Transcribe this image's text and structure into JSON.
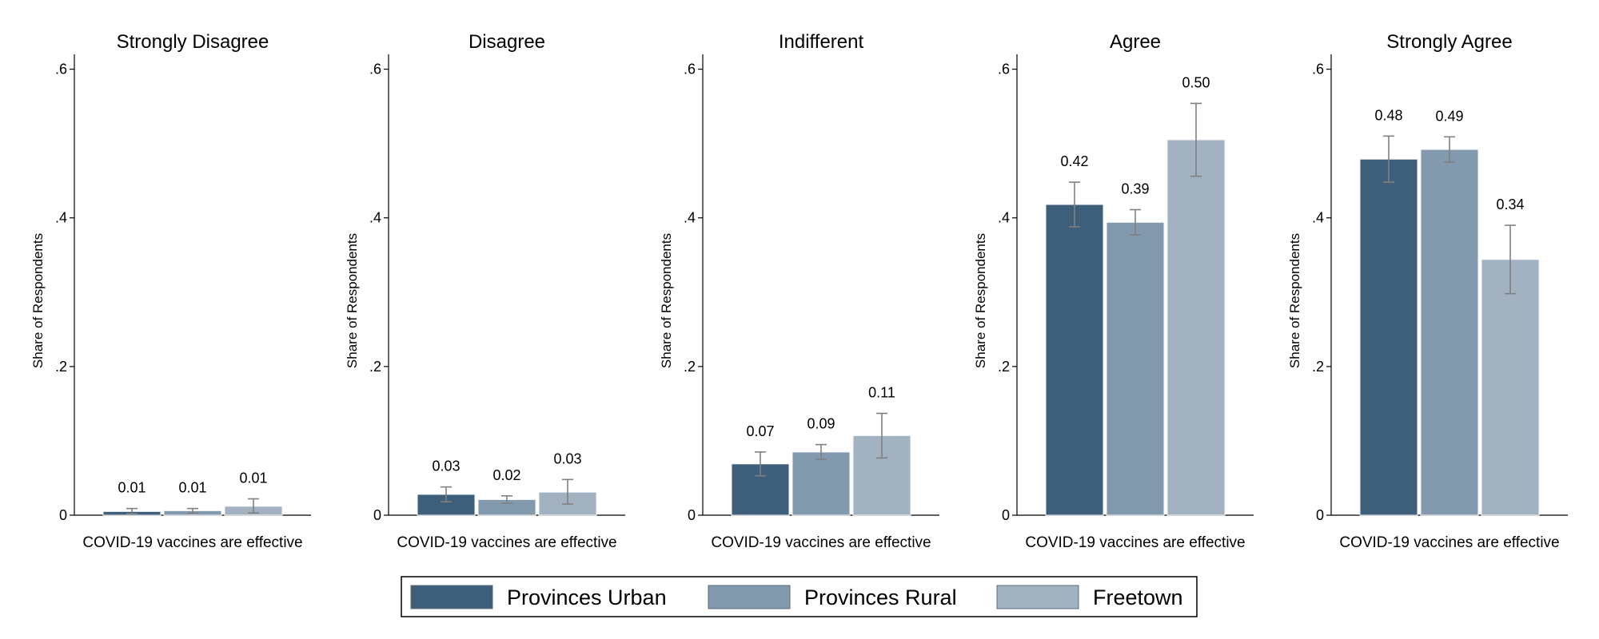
{
  "chart_data": {
    "type": "bar",
    "panels": [
      {
        "title": "Strongly Disagree",
        "values": [
          0.005,
          0.006,
          0.012
        ],
        "value_labels": [
          "0.01",
          "0.01",
          "0.01"
        ],
        "ci": [
          [
            0.002,
            0.009
          ],
          [
            0.003,
            0.009
          ],
          [
            0.003,
            0.022
          ]
        ]
      },
      {
        "title": "Disagree",
        "values": [
          0.028,
          0.021,
          0.031
        ],
        "value_labels": [
          "0.03",
          "0.02",
          "0.03"
        ],
        "ci": [
          [
            0.018,
            0.038
          ],
          [
            0.016,
            0.026
          ],
          [
            0.015,
            0.048
          ]
        ]
      },
      {
        "title": "Indifferent",
        "values": [
          0.069,
          0.085,
          0.107
        ],
        "value_labels": [
          "0.07",
          "0.09",
          "0.11"
        ],
        "ci": [
          [
            0.053,
            0.085
          ],
          [
            0.075,
            0.095
          ],
          [
            0.077,
            0.137
          ]
        ]
      },
      {
        "title": "Agree",
        "values": [
          0.418,
          0.394,
          0.505
        ],
        "value_labels": [
          "0.42",
          "0.39",
          "0.50"
        ],
        "ci": [
          [
            0.388,
            0.448
          ],
          [
            0.377,
            0.411
          ],
          [
            0.456,
            0.554
          ]
        ]
      },
      {
        "title": "Strongly Agree",
        "values": [
          0.479,
          0.492,
          0.344
        ],
        "value_labels": [
          "0.48",
          "0.49",
          "0.34"
        ],
        "ci": [
          [
            0.448,
            0.51
          ],
          [
            0.475,
            0.509
          ],
          [
            0.298,
            0.39
          ]
        ]
      }
    ],
    "series": [
      {
        "name": "Provinces Urban",
        "color": "#3d5f7a"
      },
      {
        "name": "Provinces Rural",
        "color": "#8399ae"
      },
      {
        "name": "Freetown",
        "color": "#a2b2c1"
      }
    ],
    "xlabel": "COVID-19 vaccines are effective",
    "ylabel": "Share of Respondents",
    "ylim": [
      0,
      0.62
    ],
    "yticks": [
      0,
      0.2,
      0.4,
      0.6
    ],
    "ytick_labels": [
      "0",
      ".2",
      ".4",
      ".6"
    ],
    "grid": false,
    "legend_position": "bottom-center",
    "colors": {
      "error_bar": "#808080",
      "bar_edge": "#ffffff",
      "axis": "#000000"
    }
  }
}
